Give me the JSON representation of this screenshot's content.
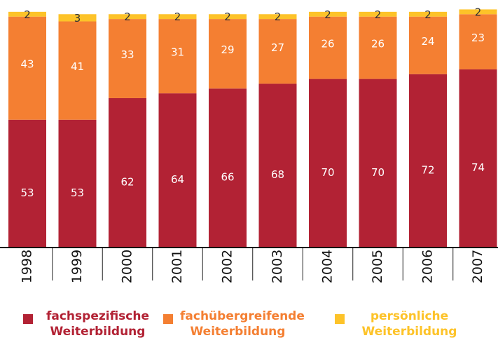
{
  "chart_data": {
    "type": "bar",
    "stacked": true,
    "categories": [
      "1998",
      "1999",
      "2000",
      "2001",
      "2002",
      "2003",
      "2004",
      "2005",
      "2006",
      "2007"
    ],
    "series": [
      {
        "name": "fachspezifische Weiterbildung",
        "color": "#b22234",
        "values": [
          53,
          53,
          62,
          64,
          66,
          68,
          70,
          70,
          72,
          74
        ]
      },
      {
        "name": "fachübergreifende Weiterbildung",
        "color": "#f47f32",
        "values": [
          43,
          41,
          33,
          31,
          29,
          27,
          26,
          26,
          24,
          23
        ]
      },
      {
        "name": "persönliche Weiterbildung",
        "color": "#fdc329",
        "values": [
          2,
          3,
          2,
          2,
          2,
          2,
          2,
          2,
          2,
          2
        ]
      }
    ],
    "ylim": [
      0,
      100
    ]
  }
}
